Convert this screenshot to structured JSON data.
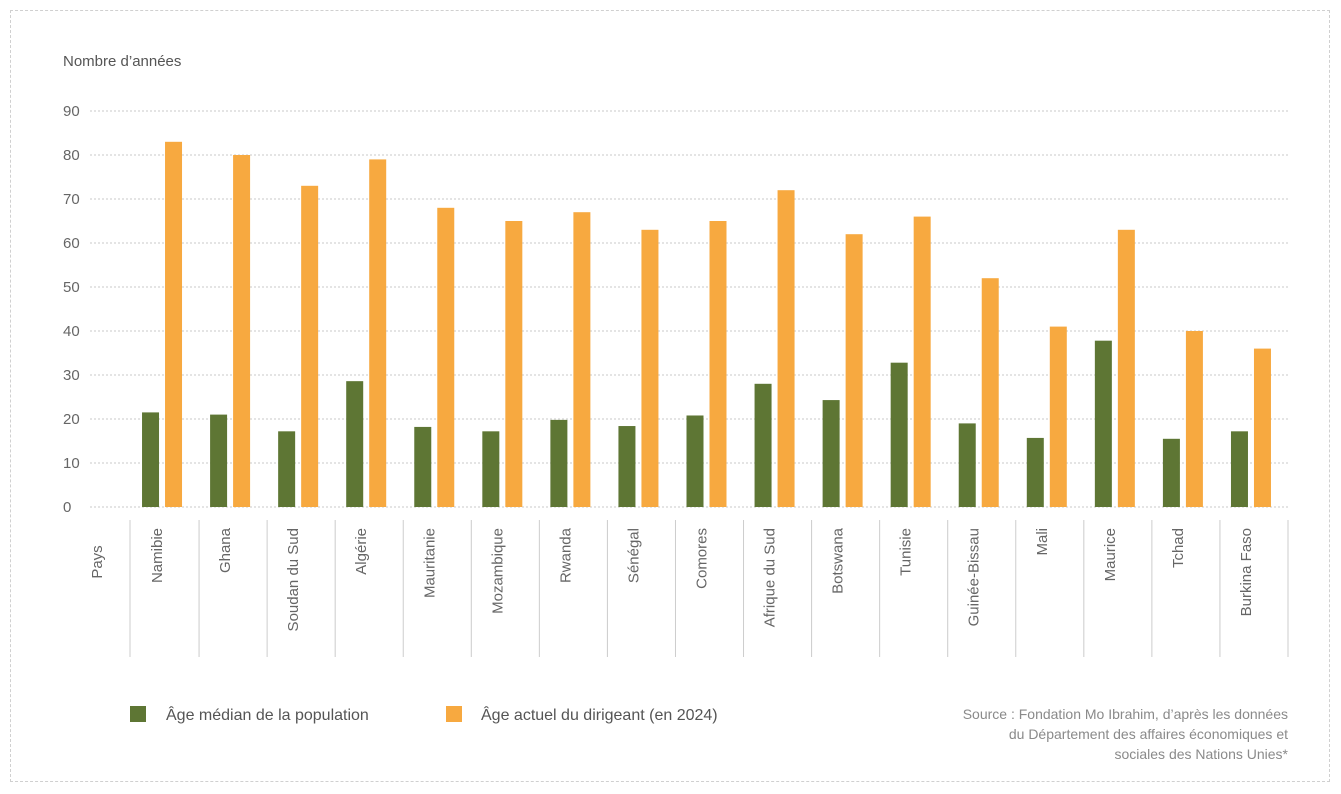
{
  "chart_data": {
    "type": "bar",
    "ylabel": "Nombre d’années",
    "xlabel": "Pays",
    "ylim": [
      0,
      90
    ],
    "yticks": [
      0,
      10,
      20,
      30,
      40,
      50,
      60,
      70,
      80,
      90
    ],
    "grid": true,
    "categories": [
      "Namibie",
      "Ghana",
      "Soudan du Sud",
      "Algérie",
      "Mauritanie",
      "Mozambique",
      "Rwanda",
      "Sénégal",
      "Comores",
      "Afrique du Sud",
      "Botswana",
      "Tunisie",
      "Guinée-Bissau",
      "Mali",
      "Maurice",
      "Tchad",
      "Burkina Faso"
    ],
    "series": [
      {
        "name": "Âge médian de la population",
        "color": "#5e7634",
        "values": [
          21.5,
          21,
          17.2,
          28.6,
          18.2,
          17.2,
          19.8,
          18.4,
          20.8,
          28,
          24.3,
          32.8,
          19,
          15.7,
          37.8,
          15.5,
          17.2
        ]
      },
      {
        "name": "Âge actuel du dirigeant (en 2024)",
        "color": "#f7a940",
        "values": [
          83,
          80,
          73,
          79,
          68,
          65,
          67,
          63,
          65,
          72,
          62,
          66,
          52,
          41,
          63,
          40,
          36
        ]
      }
    ],
    "legend": "bottom-left",
    "source": [
      "Source : Fondation Mo Ibrahim, d’après les données",
      "du Département des affaires économiques et",
      "sociales des Nations Unies*"
    ]
  }
}
